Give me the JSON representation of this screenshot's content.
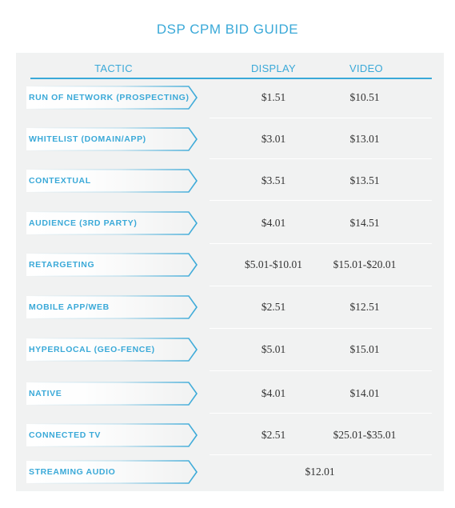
{
  "title": "DSP CPM BID GUIDE",
  "colors": {
    "accent": "#3aa9d8",
    "panel": "#f1f2f2",
    "text": "#333333"
  },
  "headers": {
    "tactic": "TACTIC",
    "display": "DISPLAY",
    "video": "VIDEO"
  },
  "rows": [
    {
      "tactic": "RUN OF NETWORK (PROSPECTING)",
      "display": "$1.51",
      "video": "$10.51"
    },
    {
      "tactic": "WHITELIST (DOMAIN/APP)",
      "display": "$3.01",
      "video": "$13.01"
    },
    {
      "tactic": "CONTEXTUAL",
      "display": "$3.51",
      "video": "$13.51"
    },
    {
      "tactic": "AUDIENCE (3RD PARTY)",
      "display": "$4.01",
      "video": "$14.51"
    },
    {
      "tactic": "RETARGETING",
      "display": "$5.01-$10.01",
      "video": "$15.01-$20.01"
    },
    {
      "tactic": "MOBILE APP/WEB",
      "display": "$2.51",
      "video": "$12.51"
    },
    {
      "tactic": "HYPERLOCAL (GEO-FENCE)",
      "display": "$5.01",
      "video": "$15.01"
    },
    {
      "tactic": "NATIVE",
      "display": "$4.01",
      "video": "$14.01"
    },
    {
      "tactic": "CONNECTED TV",
      "display": "$2.51",
      "video": "$25.01-$35.01"
    },
    {
      "tactic": "STREAMING AUDIO",
      "merged": "$12.01"
    }
  ]
}
